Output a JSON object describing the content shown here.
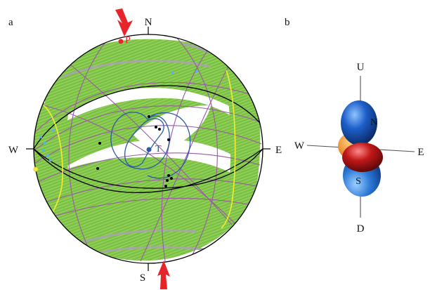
{
  "panel_a": {
    "label": "a",
    "directions": {
      "north": "N",
      "south": "S",
      "east": "E",
      "west": "W"
    },
    "markers": {
      "p_label": "P",
      "t_label": "T"
    },
    "colors": {
      "fill_band": "#7cc242",
      "fill_band_edge": "#a8dc7a",
      "purple_lines": "#9a5aa6",
      "gray_lines": "#a6a6a6",
      "black_lines": "#000000",
      "blue_curves": "#2a5aa8",
      "yellow_curves": "#f2ee2c",
      "arrow_red": "#e8242b",
      "point_cyan": "#56b6e6",
      "point_yellow": "#f2e83c"
    }
  },
  "panel_b": {
    "label": "b",
    "directions": {
      "up": "U",
      "down": "D",
      "east": "E",
      "west": "W",
      "north": "N",
      "south": "S"
    },
    "colors": {
      "lobe_blue": "#1d5fc9",
      "lobe_red": "#c11818",
      "lobe_orange": "#f08c1c"
    }
  }
}
